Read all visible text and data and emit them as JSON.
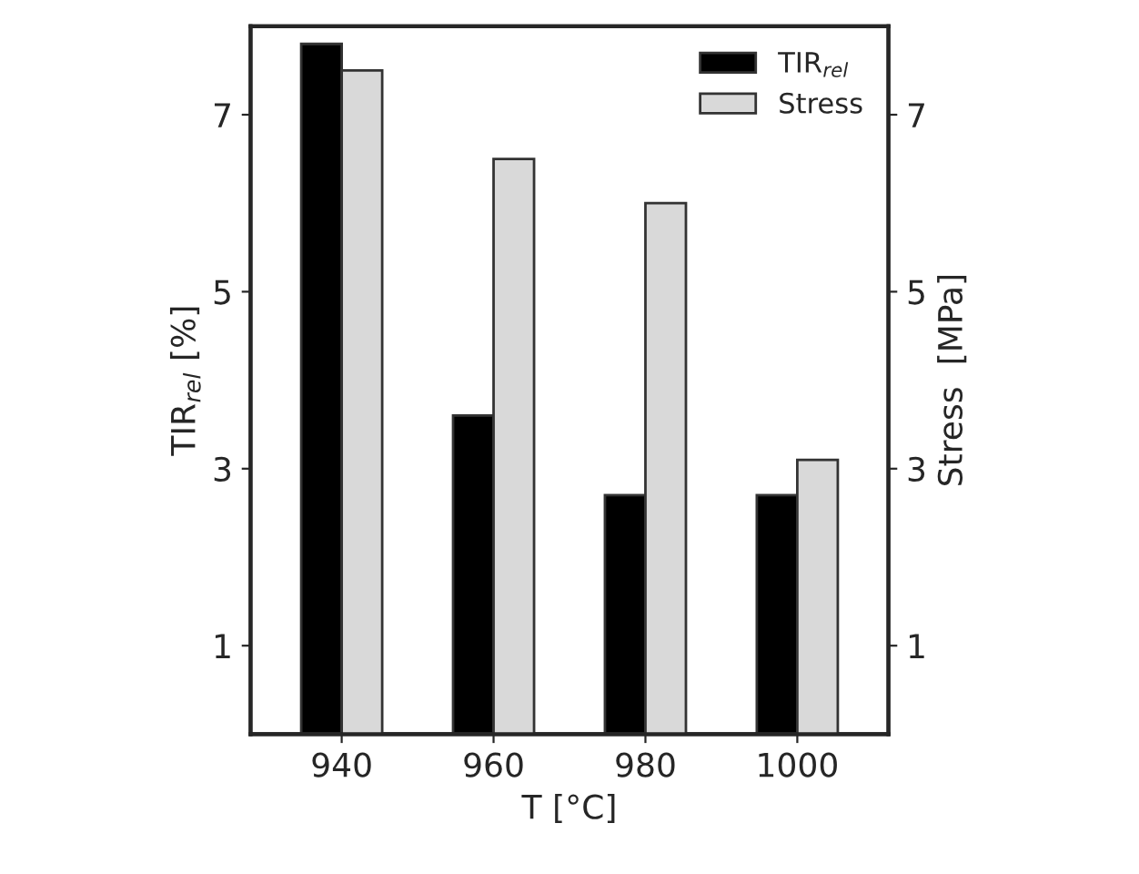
{
  "chart_data": {
    "type": "bar",
    "xlabel": "T [°C]",
    "ylabel": "TIR$_{rel}$ [%]",
    "y2label": "Stress  [MPa]",
    "categories": [
      "940",
      "960",
      "980",
      "1000"
    ],
    "series": [
      {
        "name": "TIR$_{rel}$",
        "color": "#000000",
        "values": [
          7.8,
          3.6,
          2.7,
          2.7
        ]
      },
      {
        "name": "Stress",
        "color": "#d9d9d9",
        "axis": "y2",
        "values": [
          7.5,
          6.5,
          6.0,
          3.1
        ]
      }
    ],
    "ylim": [
      0,
      8
    ],
    "yticks": [
      1,
      3,
      5,
      7
    ],
    "y2lim": [
      0,
      8
    ],
    "y2ticks": [
      1,
      3,
      5,
      7
    ],
    "legend": "top right",
    "grid": false
  }
}
